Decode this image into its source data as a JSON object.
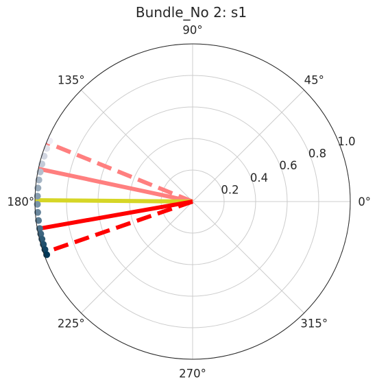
{
  "chart_data": {
    "type": "polar",
    "title": "Bundle_No 2: s1",
    "radial_range": [
      0,
      1.0
    ],
    "radial_ticks": [
      "0.2",
      "0.4",
      "0.6",
      "0.8",
      "1.0"
    ],
    "radial_tick_values": [
      0.2,
      0.4,
      0.6,
      0.8,
      1.0
    ],
    "angular_ticks": [
      "0°",
      "45°",
      "90°",
      "135°",
      "180°",
      "225°",
      "270°",
      "315°"
    ],
    "angular_tick_values": [
      0,
      45,
      90,
      135,
      180,
      225,
      270,
      315
    ],
    "grid": true,
    "scatter": {
      "r": 1.0,
      "angles_deg": [
        157,
        160,
        163,
        166,
        169,
        172,
        175,
        178,
        181,
        184,
        187,
        190,
        192,
        194,
        196,
        198,
        200
      ],
      "color_scale": [
        "#efedf5",
        "#023858"
      ]
    },
    "lines": [
      {
        "angle_deg": 158,
        "r": 1.0,
        "color": "#ff7f7f",
        "style": "dashed"
      },
      {
        "angle_deg": 168,
        "r": 1.0,
        "color": "#ff7f7f",
        "style": "solid"
      },
      {
        "angle_deg": 179.5,
        "r": 1.0,
        "color": "#d6d626",
        "style": "solid"
      },
      {
        "angle_deg": 190,
        "r": 1.0,
        "color": "#ff0000",
        "style": "solid"
      },
      {
        "angle_deg": 199,
        "r": 1.0,
        "color": "#ff0000",
        "style": "dashed"
      }
    ]
  }
}
